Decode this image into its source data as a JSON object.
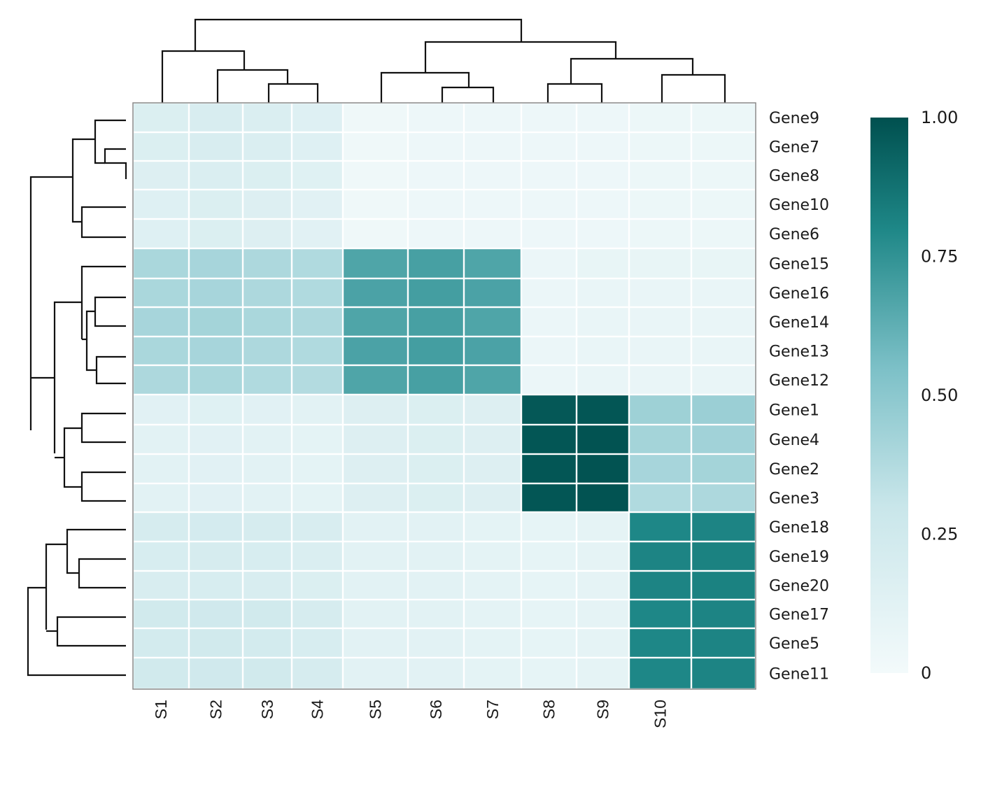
{
  "chart_data": {
    "type": "heatmap",
    "title": "",
    "xlabel": "",
    "ylabel": "",
    "columns": [
      "S1",
      "S2",
      "S3",
      "S4",
      "S5",
      "S6",
      "S7",
      "S8",
      "S9",
      "S10",
      ""
    ],
    "rows": [
      "Gene9",
      "Gene7",
      "Gene8",
      "Gene10",
      "Gene6",
      "Gene15",
      "Gene16",
      "Gene14",
      "Gene13",
      "Gene12",
      "Gene1",
      "Gene4",
      "Gene2",
      "Gene3",
      "Gene18",
      "Gene19",
      "Gene20",
      "Gene17",
      "Gene5",
      "Gene11"
    ],
    "values": [
      [
        0.17,
        0.19,
        0.18,
        0.15,
        0.03,
        0.04,
        0.04,
        0.04,
        0.04,
        0.05,
        0.05
      ],
      [
        0.17,
        0.19,
        0.18,
        0.15,
        0.03,
        0.04,
        0.04,
        0.04,
        0.04,
        0.05,
        0.05
      ],
      [
        0.16,
        0.18,
        0.17,
        0.14,
        0.03,
        0.04,
        0.04,
        0.04,
        0.04,
        0.05,
        0.05
      ],
      [
        0.15,
        0.17,
        0.16,
        0.13,
        0.03,
        0.04,
        0.04,
        0.04,
        0.04,
        0.05,
        0.05
      ],
      [
        0.15,
        0.17,
        0.16,
        0.13,
        0.03,
        0.04,
        0.04,
        0.04,
        0.04,
        0.05,
        0.05
      ],
      [
        0.4,
        0.41,
        0.39,
        0.38,
        0.67,
        0.69,
        0.67,
        0.06,
        0.08,
        0.08,
        0.08
      ],
      [
        0.4,
        0.41,
        0.39,
        0.38,
        0.68,
        0.7,
        0.68,
        0.06,
        0.07,
        0.07,
        0.07
      ],
      [
        0.41,
        0.42,
        0.4,
        0.39,
        0.67,
        0.69,
        0.67,
        0.06,
        0.07,
        0.07,
        0.07
      ],
      [
        0.4,
        0.41,
        0.39,
        0.38,
        0.68,
        0.7,
        0.68,
        0.06,
        0.07,
        0.07,
        0.07
      ],
      [
        0.39,
        0.4,
        0.38,
        0.37,
        0.67,
        0.69,
        0.67,
        0.06,
        0.07,
        0.07,
        0.07
      ],
      [
        0.13,
        0.14,
        0.13,
        0.12,
        0.16,
        0.17,
        0.16,
        0.97,
        0.98,
        0.44,
        0.45
      ],
      [
        0.12,
        0.13,
        0.12,
        0.11,
        0.16,
        0.17,
        0.16,
        0.98,
        0.99,
        0.42,
        0.43
      ],
      [
        0.12,
        0.13,
        0.12,
        0.11,
        0.16,
        0.17,
        0.16,
        0.98,
        0.99,
        0.41,
        0.42
      ],
      [
        0.12,
        0.13,
        0.12,
        0.11,
        0.16,
        0.17,
        0.16,
        0.98,
        0.99,
        0.38,
        0.39
      ],
      [
        0.21,
        0.22,
        0.21,
        0.19,
        0.12,
        0.12,
        0.11,
        0.09,
        0.1,
        0.8,
        0.81
      ],
      [
        0.2,
        0.21,
        0.2,
        0.18,
        0.12,
        0.12,
        0.11,
        0.09,
        0.1,
        0.81,
        0.82
      ],
      [
        0.19,
        0.2,
        0.19,
        0.17,
        0.12,
        0.12,
        0.11,
        0.09,
        0.1,
        0.81,
        0.82
      ],
      [
        0.24,
        0.25,
        0.24,
        0.21,
        0.12,
        0.12,
        0.11,
        0.09,
        0.1,
        0.8,
        0.81
      ],
      [
        0.23,
        0.24,
        0.23,
        0.2,
        0.12,
        0.12,
        0.11,
        0.09,
        0.1,
        0.8,
        0.81
      ],
      [
        0.24,
        0.25,
        0.24,
        0.21,
        0.12,
        0.12,
        0.11,
        0.09,
        0.1,
        0.8,
        0.81
      ]
    ],
    "color_range": [
      0,
      1
    ],
    "color_low": "#f3fafb",
    "color_mid": "#8fcbd2",
    "color_high": "#00504f",
    "colorbar_ticks": [
      "0",
      "0.25",
      "0.50",
      "0.75",
      "1.00"
    ],
    "colorbar_tick_values": [
      0,
      0.25,
      0.5,
      0.75,
      1.0
    ],
    "row_dendrogram": true,
    "column_dendrogram": true,
    "legend_position": "right"
  }
}
